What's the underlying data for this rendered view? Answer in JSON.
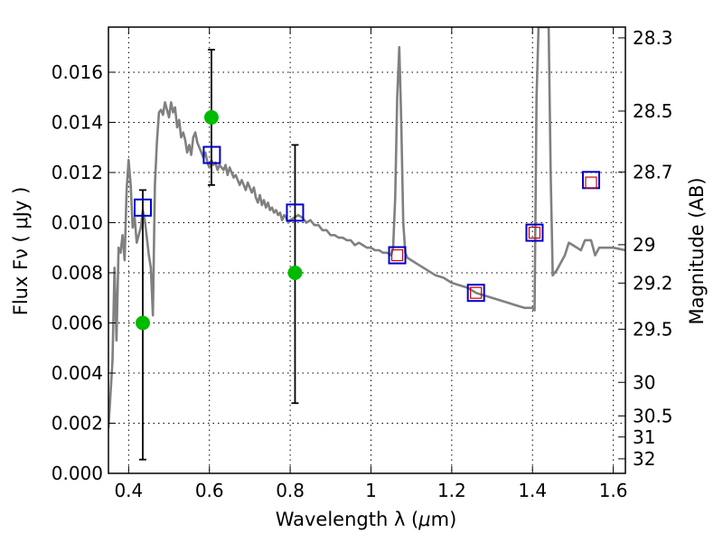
{
  "chart_data": {
    "type": "scatter",
    "xlabel_prefix": "Wavelength  λ (",
    "xlabel_unit_mu": "μ",
    "xlabel_suffix": "m)",
    "ylabel_left": "Flux  Fν  ( μJy )",
    "ylabel_right": "Magnitude (AB)",
    "xlim": [
      0.35,
      1.63
    ],
    "ylim": [
      0.0,
      0.0178
    ],
    "grid": true,
    "x_ticks": [
      {
        "value": 0.4,
        "label": "0.4"
      },
      {
        "value": 0.6,
        "label": "0.6"
      },
      {
        "value": 0.8,
        "label": "0.8"
      },
      {
        "value": 1.0,
        "label": "1"
      },
      {
        "value": 1.2,
        "label": "1.2"
      },
      {
        "value": 1.4,
        "label": "1.4"
      },
      {
        "value": 1.6,
        "label": "1.6"
      }
    ],
    "y_ticks": [
      {
        "value": 0.0,
        "label": "0.000"
      },
      {
        "value": 0.002,
        "label": "0.002"
      },
      {
        "value": 0.004,
        "label": "0.004"
      },
      {
        "value": 0.006,
        "label": "0.006"
      },
      {
        "value": 0.008,
        "label": "0.008"
      },
      {
        "value": 0.01,
        "label": "0.010"
      },
      {
        "value": 0.012,
        "label": "0.012"
      },
      {
        "value": 0.014,
        "label": "0.014"
      },
      {
        "value": 0.016,
        "label": "0.016"
      }
    ],
    "right_ticks": [
      {
        "flux": 0.01737,
        "label": "28.3"
      },
      {
        "flux": 0.01445,
        "label": "28.5"
      },
      {
        "flux": 0.01202,
        "label": "28.7"
      },
      {
        "flux": 0.00912,
        "label": "29"
      },
      {
        "flux": 0.00759,
        "label": "29.2"
      },
      {
        "flux": 0.00575,
        "label": "29.5"
      },
      {
        "flux": 0.00363,
        "label": "30"
      },
      {
        "flux": 0.00229,
        "label": "30.5"
      },
      {
        "flux": 0.00145,
        "label": "31"
      },
      {
        "flux": 0.00058,
        "label": "32"
      }
    ],
    "series": [
      {
        "kind": "sed_line",
        "color": "#808080",
        "points": [
          [
            0.35,
            0.0018
          ],
          [
            0.36,
            0.0045
          ],
          [
            0.365,
            0.0082
          ],
          [
            0.37,
            0.0053
          ],
          [
            0.375,
            0.009
          ],
          [
            0.38,
            0.0088
          ],
          [
            0.385,
            0.0095
          ],
          [
            0.39,
            0.0085
          ],
          [
            0.395,
            0.0113
          ],
          [
            0.4,
            0.0125
          ],
          [
            0.405,
            0.0115
          ],
          [
            0.41,
            0.0098
          ],
          [
            0.415,
            0.0102
          ],
          [
            0.42,
            0.0092
          ],
          [
            0.425,
            0.0095
          ],
          [
            0.43,
            0.0098
          ],
          [
            0.435,
            0.0105
          ],
          [
            0.44,
            0.0101
          ],
          [
            0.445,
            0.0094
          ],
          [
            0.45,
            0.0087
          ],
          [
            0.455,
            0.0082
          ],
          [
            0.46,
            0.0063
          ],
          [
            0.465,
            0.0115
          ],
          [
            0.47,
            0.0132
          ],
          [
            0.475,
            0.0144
          ],
          [
            0.48,
            0.0145
          ],
          [
            0.485,
            0.0143
          ],
          [
            0.49,
            0.0148
          ],
          [
            0.495,
            0.0145
          ],
          [
            0.5,
            0.0142
          ],
          [
            0.505,
            0.0148
          ],
          [
            0.51,
            0.0144
          ],
          [
            0.515,
            0.0146
          ],
          [
            0.52,
            0.0138
          ],
          [
            0.525,
            0.0141
          ],
          [
            0.53,
            0.0134
          ],
          [
            0.535,
            0.0136
          ],
          [
            0.54,
            0.0133
          ],
          [
            0.545,
            0.0128
          ],
          [
            0.55,
            0.0131
          ],
          [
            0.555,
            0.0127
          ],
          [
            0.56,
            0.0134
          ],
          [
            0.565,
            0.0136
          ],
          [
            0.57,
            0.0132
          ],
          [
            0.575,
            0.013
          ],
          [
            0.58,
            0.0128
          ],
          [
            0.585,
            0.0126
          ],
          [
            0.59,
            0.0128
          ],
          [
            0.595,
            0.0124
          ],
          [
            0.6,
            0.0122
          ],
          [
            0.605,
            0.0125
          ],
          [
            0.61,
            0.0123
          ],
          [
            0.615,
            0.0124
          ],
          [
            0.62,
            0.0121
          ],
          [
            0.625,
            0.0123
          ],
          [
            0.63,
            0.0122
          ],
          [
            0.635,
            0.0121
          ],
          [
            0.64,
            0.0123
          ],
          [
            0.645,
            0.0119
          ],
          [
            0.65,
            0.0122
          ],
          [
            0.655,
            0.012
          ],
          [
            0.66,
            0.0118
          ],
          [
            0.665,
            0.0119
          ],
          [
            0.67,
            0.0117
          ],
          [
            0.675,
            0.0115
          ],
          [
            0.68,
            0.0117
          ],
          [
            0.685,
            0.0115
          ],
          [
            0.69,
            0.0113
          ],
          [
            0.695,
            0.0116
          ],
          [
            0.7,
            0.0114
          ],
          [
            0.705,
            0.0112
          ],
          [
            0.71,
            0.0114
          ],
          [
            0.715,
            0.011
          ],
          [
            0.72,
            0.0108
          ],
          [
            0.725,
            0.0111
          ],
          [
            0.73,
            0.0107
          ],
          [
            0.735,
            0.0109
          ],
          [
            0.74,
            0.0106
          ],
          [
            0.745,
            0.0108
          ],
          [
            0.75,
            0.0105
          ],
          [
            0.755,
            0.0106
          ],
          [
            0.76,
            0.0104
          ],
          [
            0.765,
            0.0105
          ],
          [
            0.77,
            0.0103
          ],
          [
            0.775,
            0.0104
          ],
          [
            0.78,
            0.0101
          ],
          [
            0.785,
            0.0103
          ],
          [
            0.79,
            0.0102
          ],
          [
            0.795,
            0.01
          ],
          [
            0.8,
            0.0101
          ],
          [
            0.81,
            0.0102
          ],
          [
            0.82,
            0.0103
          ],
          [
            0.83,
            0.0102
          ],
          [
            0.84,
            0.01
          ],
          [
            0.85,
            0.0101
          ],
          [
            0.86,
            0.0099
          ],
          [
            0.87,
            0.0099
          ],
          [
            0.88,
            0.0097
          ],
          [
            0.89,
            0.0097
          ],
          [
            0.9,
            0.0095
          ],
          [
            0.91,
            0.0095
          ],
          [
            0.92,
            0.0094
          ],
          [
            0.93,
            0.0094
          ],
          [
            0.94,
            0.0093
          ],
          [
            0.95,
            0.0093
          ],
          [
            0.96,
            0.0091
          ],
          [
            0.97,
            0.0092
          ],
          [
            0.98,
            0.0091
          ],
          [
            0.99,
            0.009
          ],
          [
            1.0,
            0.009
          ],
          [
            1.01,
            0.0089
          ],
          [
            1.02,
            0.0089
          ],
          [
            1.03,
            0.0088
          ],
          [
            1.04,
            0.0088
          ],
          [
            1.05,
            0.0087
          ],
          [
            1.055,
            0.009
          ],
          [
            1.06,
            0.011
          ],
          [
            1.065,
            0.015
          ],
          [
            1.07,
            0.017
          ],
          [
            1.075,
            0.014
          ],
          [
            1.08,
            0.01
          ],
          [
            1.085,
            0.0088
          ],
          [
            1.09,
            0.0086
          ],
          [
            1.1,
            0.0085
          ],
          [
            1.12,
            0.0083
          ],
          [
            1.14,
            0.0081
          ],
          [
            1.16,
            0.0079
          ],
          [
            1.18,
            0.0078
          ],
          [
            1.2,
            0.0076
          ],
          [
            1.22,
            0.0075
          ],
          [
            1.24,
            0.0074
          ],
          [
            1.26,
            0.0072
          ],
          [
            1.28,
            0.0071
          ],
          [
            1.3,
            0.007
          ],
          [
            1.32,
            0.0069
          ],
          [
            1.34,
            0.0068
          ],
          [
            1.36,
            0.0067
          ],
          [
            1.38,
            0.0066
          ],
          [
            1.4,
            0.0066
          ],
          [
            1.405,
            0.0065
          ],
          [
            1.41,
            0.015
          ],
          [
            1.415,
            0.0178
          ],
          [
            1.43,
            0.0178
          ],
          [
            1.44,
            0.0178
          ],
          [
            1.445,
            0.012
          ],
          [
            1.45,
            0.0079
          ],
          [
            1.46,
            0.0081
          ],
          [
            1.47,
            0.0084
          ],
          [
            1.48,
            0.0087
          ],
          [
            1.49,
            0.0092
          ],
          [
            1.5,
            0.0091
          ],
          [
            1.51,
            0.009
          ],
          [
            1.52,
            0.0089
          ],
          [
            1.53,
            0.0093
          ],
          [
            1.545,
            0.0093
          ],
          [
            1.555,
            0.0087
          ],
          [
            1.565,
            0.009
          ],
          [
            1.58,
            0.009
          ],
          [
            1.6,
            0.009
          ],
          [
            1.63,
            0.0089
          ]
        ]
      },
      {
        "kind": "green_points_with_errors",
        "color": "#00bb00",
        "points": [
          {
            "x": 0.435,
            "y": 0.006,
            "err_lo": 0.00055,
            "err_hi": 0.0113
          },
          {
            "x": 0.605,
            "y": 0.0142,
            "err_lo": 0.0115,
            "err_hi": 0.0169
          },
          {
            "x": 0.812,
            "y": 0.008,
            "err_lo": 0.0028,
            "err_hi": 0.0131
          }
        ]
      },
      {
        "kind": "blue_squares",
        "color": "#0000cc",
        "points": [
          {
            "x": 0.435,
            "y": 0.0106
          },
          {
            "x": 0.606,
            "y": 0.0127
          },
          {
            "x": 0.812,
            "y": 0.0104
          },
          {
            "x": 1.065,
            "y": 0.0087
          },
          {
            "x": 1.26,
            "y": 0.0072
          },
          {
            "x": 1.405,
            "y": 0.0096
          },
          {
            "x": 1.545,
            "y": 0.0117
          }
        ]
      },
      {
        "kind": "red_squares",
        "color": "#cc0000",
        "points": [
          {
            "x": 1.065,
            "y": 0.0087
          },
          {
            "x": 1.26,
            "y": 0.0072
          },
          {
            "x": 1.405,
            "y": 0.0096
          },
          {
            "x": 1.545,
            "y": 0.0116
          }
        ]
      }
    ]
  }
}
